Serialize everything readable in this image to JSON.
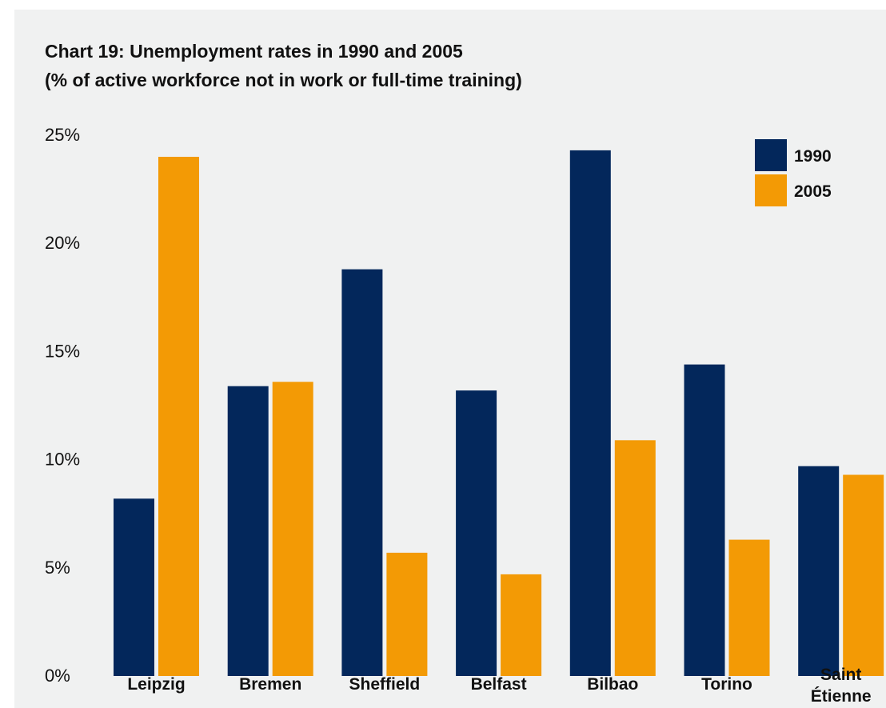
{
  "chart_data": {
    "type": "bar",
    "title": "Chart 19: Unemployment rates in 1990 and 2005",
    "subtitle": "(% of active workforce not in work or full-time training)",
    "xlabel": "",
    "ylabel": "",
    "ylim": [
      0,
      25
    ],
    "y_ticks": [
      "0%",
      "5%",
      "10%",
      "15%",
      "20%",
      "25%"
    ],
    "y_tick_values": [
      0,
      5,
      10,
      15,
      20,
      25
    ],
    "grid": false,
    "legend_position": "top-right",
    "categories": [
      "Leipzig",
      "Bremen",
      "Sheffield",
      "Belfast",
      "Bilbao",
      "Torino",
      "Saint Étienne"
    ],
    "series": [
      {
        "name": "1990",
        "color": "#03275b",
        "values": [
          8.2,
          13.4,
          18.8,
          13.2,
          24.3,
          14.4,
          9.7
        ]
      },
      {
        "name": "2005",
        "color": "#f39a05",
        "values": [
          24.0,
          13.6,
          5.7,
          4.7,
          10.9,
          6.3,
          9.3
        ]
      }
    ]
  }
}
